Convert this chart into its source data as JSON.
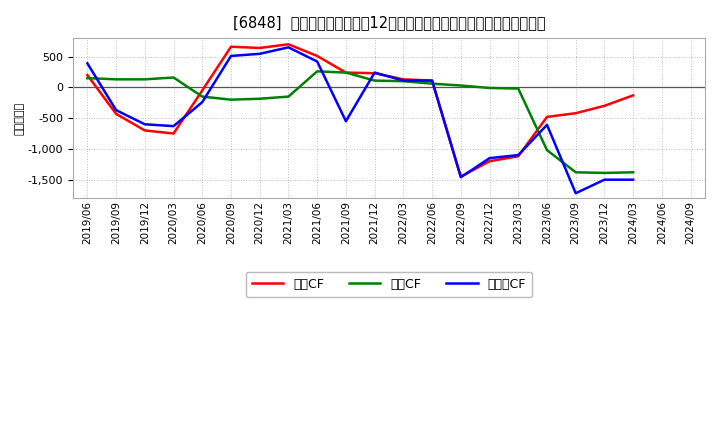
{
  "title": "[6848]  キャッシュフローの12か月移動合計の対前年同期増減額の推移",
  "ylabel": "（百万円）",
  "background_color": "#ffffff",
  "plot_background_color": "#ffffff",
  "grid_color": "#bbbbbb",
  "x_labels": [
    "2019/06",
    "2019/09",
    "2019/12",
    "2020/03",
    "2020/06",
    "2020/09",
    "2020/12",
    "2021/03",
    "2021/06",
    "2021/09",
    "2021/12",
    "2022/03",
    "2022/06",
    "2022/09",
    "2022/12",
    "2023/03",
    "2023/06",
    "2023/09",
    "2023/12",
    "2024/03",
    "2024/06",
    "2024/09"
  ],
  "operating_cf": [
    200,
    -430,
    -700,
    -750,
    -50,
    660,
    640,
    700,
    510,
    240,
    230,
    130,
    110,
    -1450,
    -1200,
    -1120,
    -480,
    -420,
    -300,
    -130,
    null,
    null
  ],
  "investing_cf": [
    150,
    130,
    130,
    160,
    -150,
    -200,
    -185,
    -150,
    260,
    240,
    110,
    100,
    60,
    30,
    -10,
    -20,
    -1020,
    -1380,
    -1390,
    -1380,
    null,
    null
  ],
  "free_cf": [
    390,
    -370,
    -600,
    -630,
    -240,
    510,
    545,
    650,
    420,
    -550,
    240,
    110,
    110,
    -1460,
    -1150,
    -1100,
    -610,
    -1720,
    -1500,
    -1500,
    null,
    null
  ],
  "ylim": [
    -1800,
    800
  ],
  "yticks": [
    -1500,
    -1000,
    -500,
    0,
    500
  ],
  "legend_labels": [
    "営業CF",
    "投資CF",
    "フリーCF"
  ],
  "line_colors": [
    "#ff0000",
    "#008000",
    "#0000ff"
  ],
  "line_width": 1.8
}
